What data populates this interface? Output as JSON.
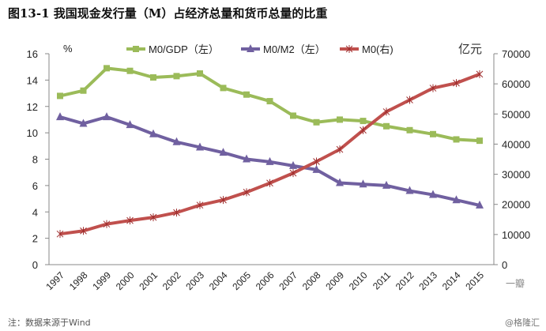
{
  "title": "图13-1 我国现金发行量（M）占经济总量和货币总量的比重",
  "note": "注：数据来源于Wind",
  "watermark": "@格隆汇",
  "watermark2": "一瓣",
  "chart_data": {
    "type": "line",
    "title": "图13-1 我国现金发行量（M）占经济总量和货币总量的比重",
    "categories": [
      "1997",
      "1998",
      "1999",
      "2000",
      "2001",
      "2002",
      "2003",
      "2004",
      "2005",
      "2006",
      "2007",
      "2008",
      "2009",
      "2010",
      "2011",
      "2012",
      "2013",
      "2014",
      "2015"
    ],
    "y_left": {
      "label": "%",
      "range": [
        0,
        16
      ],
      "ticks": [
        0,
        2,
        4,
        6,
        8,
        10,
        12,
        14,
        16
      ]
    },
    "y_right": {
      "label": "亿元",
      "range": [
        0,
        70000
      ],
      "ticks": [
        0,
        10000,
        20000,
        30000,
        40000,
        50000,
        60000,
        70000
      ]
    },
    "legend_position": "top",
    "grid": false,
    "series": [
      {
        "name": "M0/GDP（左）",
        "axis": "left",
        "color": "#9bbb59",
        "marker": "square",
        "values": [
          12.8,
          13.2,
          14.9,
          14.7,
          14.2,
          14.3,
          14.5,
          13.4,
          12.9,
          12.4,
          11.3,
          10.8,
          11.0,
          10.9,
          10.5,
          10.2,
          9.9,
          9.5,
          9.4
        ]
      },
      {
        "name": "M0/M2（左）",
        "axis": "left",
        "color": "#7060a0",
        "marker": "triangle",
        "values": [
          11.2,
          10.7,
          11.2,
          10.6,
          9.9,
          9.3,
          8.9,
          8.5,
          8.0,
          7.8,
          7.5,
          7.2,
          6.2,
          6.1,
          6.0,
          5.6,
          5.3,
          4.9,
          4.5
        ]
      },
      {
        "name": "M0(右)",
        "axis": "right",
        "color": "#c0504d",
        "marker": "x",
        "values": [
          10178,
          11204,
          13456,
          14653,
          15689,
          17278,
          19746,
          21468,
          24032,
          27073,
          30375,
          34219,
          38246,
          44628,
          50748,
          54660,
          58574,
          60260,
          63217
        ]
      }
    ]
  }
}
